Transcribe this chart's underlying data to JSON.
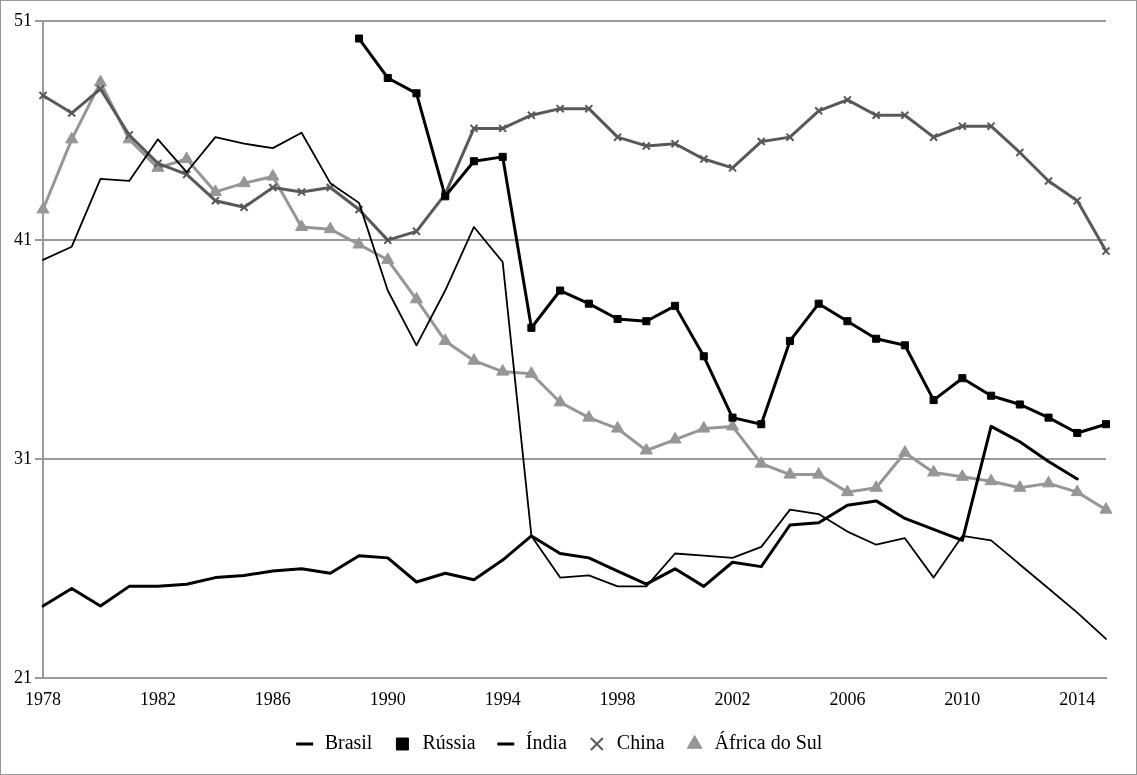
{
  "chart_data": {
    "type": "line",
    "categories": [
      "1978",
      null,
      null,
      null,
      "1982",
      null,
      null,
      null,
      "1986",
      null,
      null,
      null,
      "1990",
      null,
      null,
      null,
      "1994",
      null,
      null,
      null,
      "1998",
      null,
      null,
      null,
      "2002",
      null,
      null,
      null,
      "2006",
      null,
      null,
      null,
      "2010",
      null,
      null,
      null,
      "2014",
      null
    ],
    "ylim": [
      21,
      51
    ],
    "yticks": [
      21,
      31,
      41,
      51
    ],
    "grid": "y",
    "legend": "bottom",
    "line_style": "solid",
    "series": [
      {
        "name": "Brasil",
        "color": "#000000",
        "marker": "none",
        "values": [
          40.1,
          40.7,
          43.8,
          43.7,
          45.6,
          44.1,
          45.7,
          45.4,
          45.2,
          45.9,
          43.6,
          42.7,
          38.7,
          36.2,
          38.7,
          41.6,
          40.0,
          27.5,
          25.6,
          25.7,
          25.2,
          25.2,
          26.7,
          26.6,
          26.5,
          27.0,
          28.7,
          28.5,
          27.7,
          27.1,
          27.4,
          25.6,
          27.5,
          27.3,
          26.2,
          25.1,
          24.0,
          22.8
        ]
      },
      {
        "name": "Rússia",
        "color": "#000000",
        "marker": "square",
        "values": [
          null,
          null,
          null,
          null,
          null,
          null,
          null,
          null,
          null,
          null,
          null,
          50.2,
          48.4,
          47.7,
          43.0,
          44.6,
          44.8,
          37.0,
          38.7,
          38.1,
          37.4,
          37.3,
          38.0,
          35.7,
          32.9,
          32.6,
          36.4,
          38.1,
          37.3,
          36.5,
          36.2,
          33.7,
          34.7,
          33.9,
          33.5,
          32.9,
          32.2,
          32.6
        ]
      },
      {
        "name": "Índia",
        "color": "#000000",
        "marker": "none",
        "values": [
          24.3,
          25.1,
          24.3,
          25.2,
          25.2,
          25.3,
          25.6,
          25.7,
          25.9,
          26.0,
          25.8,
          26.6,
          26.5,
          25.4,
          25.8,
          25.5,
          26.4,
          27.5,
          26.7,
          26.5,
          25.9,
          25.3,
          26.0,
          25.2,
          26.3,
          26.1,
          28.0,
          28.1,
          28.9,
          29.1,
          28.3,
          27.8,
          27.3,
          32.5,
          31.8,
          30.9,
          30.1,
          null
        ]
      },
      {
        "name": "China",
        "color": "#595959",
        "marker": "cross",
        "values": [
          47.6,
          46.8,
          47.9,
          45.8,
          44.5,
          44.0,
          42.8,
          42.5,
          43.4,
          43.2,
          43.4,
          42.4,
          41.0,
          41.4,
          43.1,
          46.1,
          46.1,
          46.7,
          47.0,
          47.0,
          45.7,
          45.3,
          45.4,
          44.7,
          44.3,
          45.5,
          45.7,
          46.9,
          47.4,
          46.7,
          46.7,
          45.7,
          46.2,
          46.2,
          45.0,
          43.7,
          42.8,
          40.5
        ]
      },
      {
        "name": "África do Sul",
        "color": "#969696",
        "marker": "triangle",
        "values": [
          42.4,
          45.6,
          48.2,
          45.6,
          44.3,
          44.7,
          43.2,
          43.6,
          43.9,
          41.6,
          41.5,
          40.8,
          40.1,
          38.3,
          36.4,
          35.5,
          35.0,
          34.9,
          33.6,
          32.9,
          32.4,
          31.4,
          31.9,
          32.4,
          32.5,
          30.8,
          30.3,
          30.3,
          29.5,
          29.7,
          31.3,
          30.4,
          30.2,
          30.0,
          29.7,
          29.9,
          29.5,
          28.7
        ]
      }
    ]
  }
}
